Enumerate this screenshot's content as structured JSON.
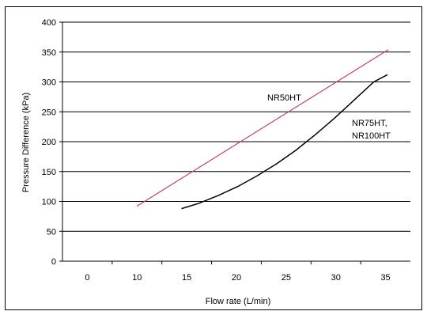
{
  "chart_data": {
    "type": "line",
    "xlabel": "Flow rate (L/min)",
    "ylabel": "Pressure Difference (kPa)",
    "x_tick_labels": [
      "0",
      "10",
      "15",
      "20",
      "25",
      "30",
      "35"
    ],
    "y_ticks": [
      0,
      50,
      100,
      150,
      200,
      250,
      300,
      350,
      400
    ],
    "ylim": [
      0,
      400
    ],
    "grid": true,
    "series": [
      {
        "name": "NR50HT",
        "color": "#c0407a",
        "points": [
          [
            9.6,
            92
          ],
          [
            35.5,
            354
          ]
        ]
      },
      {
        "name": "NR75HT, NR100HT",
        "label_lines": [
          "NR75HT,",
          "NR100HT"
        ],
        "color": "#000000",
        "points": [
          [
            14.2,
            88
          ],
          [
            16,
            97
          ],
          [
            18,
            110
          ],
          [
            20,
            125
          ],
          [
            22,
            143
          ],
          [
            24,
            163
          ],
          [
            26,
            186
          ],
          [
            28,
            212
          ],
          [
            30,
            240
          ],
          [
            32,
            270
          ],
          [
            34,
            300
          ],
          [
            35.4,
            312
          ]
        ]
      }
    ]
  }
}
